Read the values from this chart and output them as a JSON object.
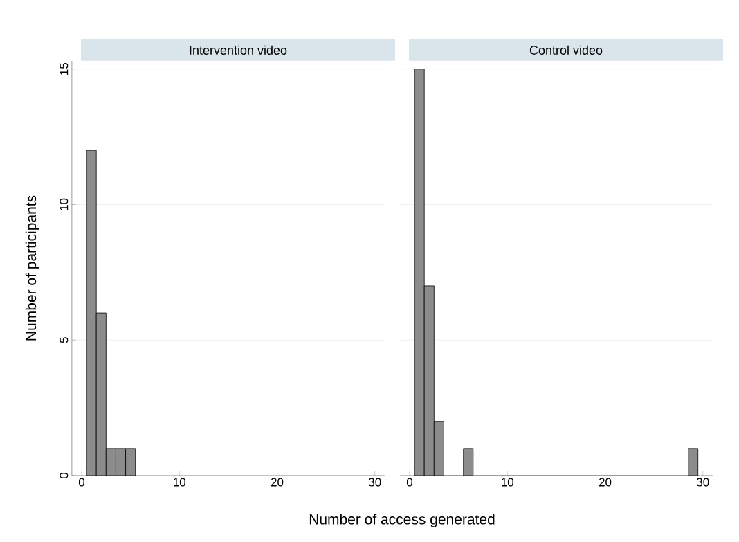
{
  "chart_data": [
    {
      "type": "histogram",
      "title": "Intervention video",
      "xlabel": "Number of access generated",
      "ylabel": "Number of participants",
      "bins": [
        0.5,
        1.5,
        2.5,
        3.5,
        4.5,
        5.5
      ],
      "values": [
        12,
        6,
        1,
        1,
        1
      ],
      "color": "#8c8c8c",
      "xlim": [
        -1,
        31
      ],
      "ylim": [
        0,
        15.3
      ],
      "xticks": [
        0,
        10,
        20,
        30
      ],
      "yticks": [
        0,
        5,
        10,
        15
      ],
      "grid": "y"
    },
    {
      "type": "histogram",
      "title": "Control video",
      "bins": [
        0.5,
        1.5,
        2.5,
        3.5,
        4.5,
        5.5,
        6.5,
        7.5,
        8.5,
        9.5,
        10.5,
        11.5,
        12.5,
        13.5,
        14.5,
        15.5,
        16.5,
        17.5,
        18.5,
        19.5,
        20.5,
        21.5,
        22.5,
        23.5,
        24.5,
        25.5,
        26.5,
        27.5,
        28.5,
        29.5
      ],
      "values": [
        15,
        7,
        2,
        0,
        0,
        1,
        0,
        0,
        0,
        0,
        0,
        0,
        0,
        0,
        0,
        0,
        0,
        0,
        0,
        0,
        0,
        0,
        0,
        0,
        0,
        0,
        0,
        0,
        1
      ],
      "color": "#8c8c8c",
      "xlim": [
        -1,
        31
      ],
      "xticks": [
        0,
        10,
        20,
        30
      ],
      "yticks": [
        0,
        5,
        10,
        15
      ],
      "grid": "y",
      "tick_labels": "x"
    }
  ]
}
